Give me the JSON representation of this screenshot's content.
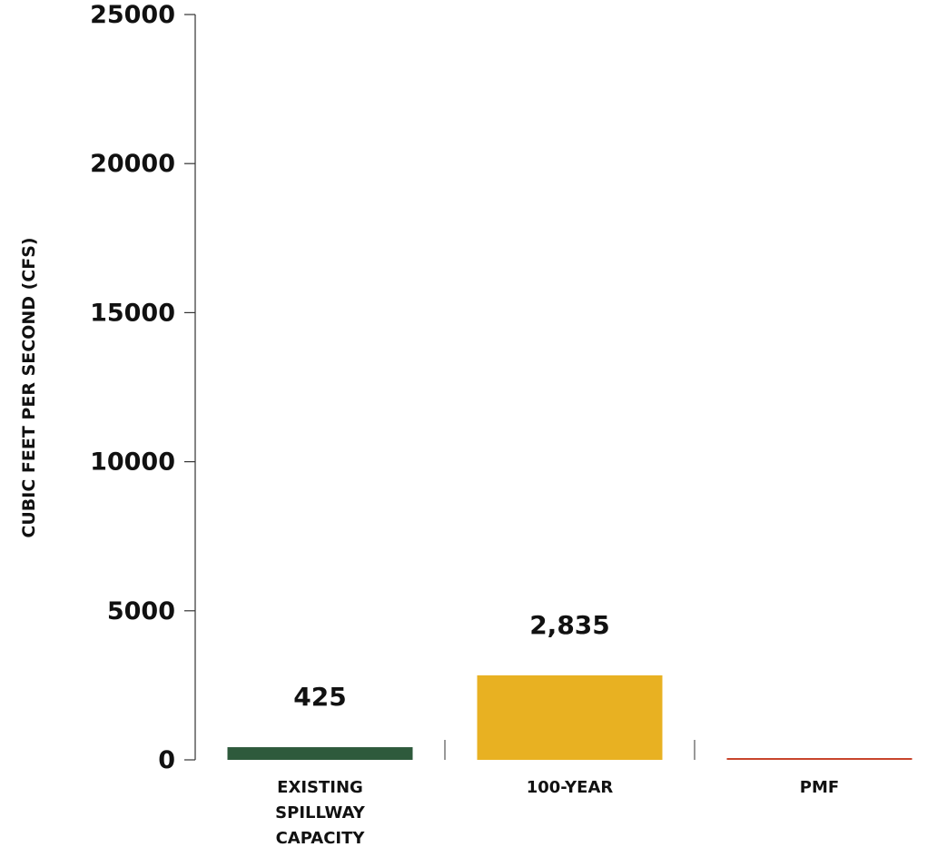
{
  "chart_data": {
    "type": "bar",
    "title": "",
    "xlabel": "",
    "ylabel": "CUBIC FEET PER SECOND (CFS)",
    "ylim": [
      0,
      25000
    ],
    "yticks": [
      0,
      5000,
      10000,
      15000,
      20000,
      25000
    ],
    "ytick_labels": [
      "0",
      "5000",
      "10000",
      "15000",
      "20000",
      "25000"
    ],
    "categories": [
      [
        "EXISTING",
        "SPILLWAY",
        "CAPACITY"
      ],
      [
        "100-YEAR"
      ],
      [
        "PMF"
      ]
    ],
    "values": [
      425,
      2835,
      50
    ],
    "data_labels": [
      "425",
      "2,835",
      ""
    ],
    "colors": [
      "#2e5a3c",
      "#e8b122",
      "#c8452c"
    ],
    "grid": false,
    "legend": "none"
  }
}
